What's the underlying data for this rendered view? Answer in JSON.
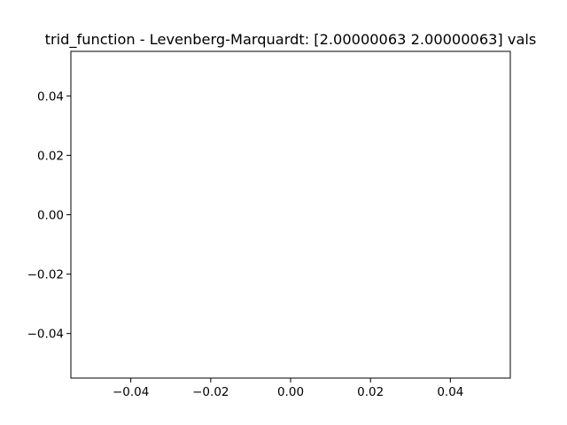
{
  "chart_data": {
    "type": "line",
    "title": "trid_function - Levenberg-Marquardt: [2.00000063 2.00000063] vals",
    "xlabel": "",
    "ylabel": "",
    "xlim": [
      -0.055,
      0.055
    ],
    "ylim": [
      -0.055,
      0.055
    ],
    "x_ticks": [
      -0.04,
      -0.02,
      0.0,
      0.02,
      0.04
    ],
    "x_tick_labels": [
      "−0.04",
      "−0.02",
      "0.00",
      "0.02",
      "0.04"
    ],
    "y_ticks": [
      0.04,
      0.02,
      0.0,
      -0.02,
      -0.04
    ],
    "y_tick_labels": [
      "0.04",
      "0.02",
      "0.00",
      "−0.02",
      "−0.04"
    ],
    "series": [],
    "grid": false,
    "legend": "none"
  }
}
